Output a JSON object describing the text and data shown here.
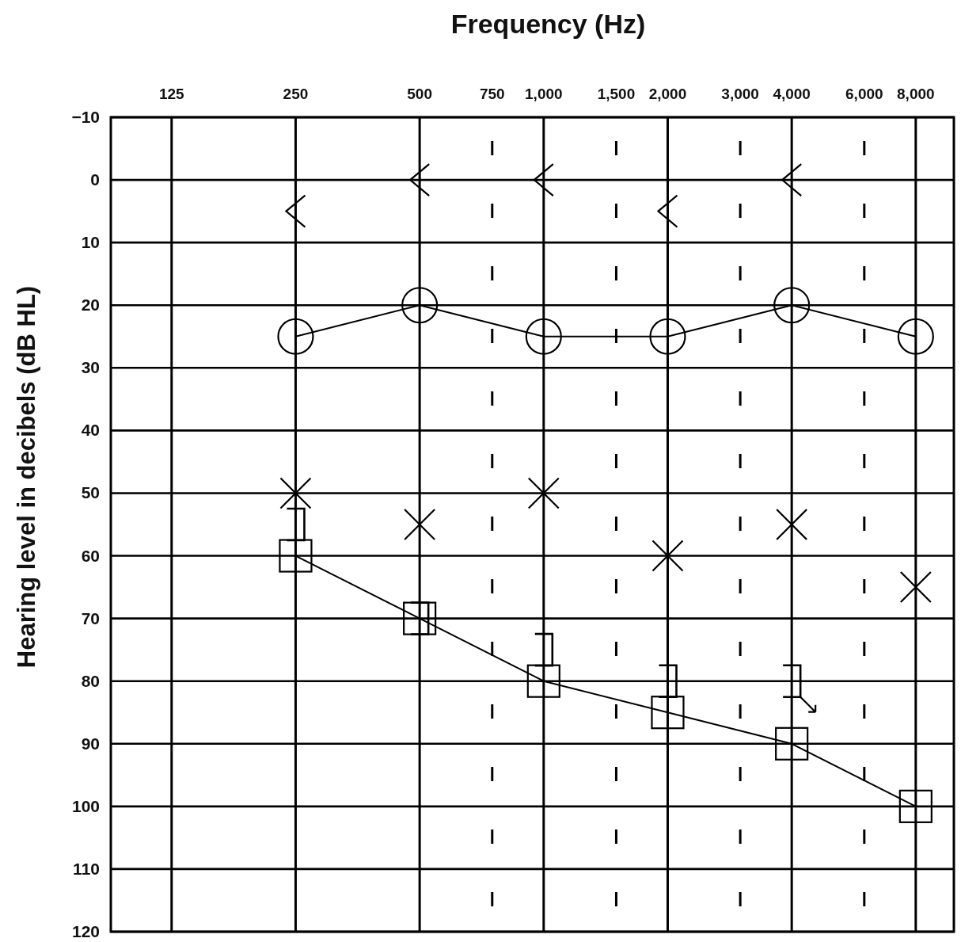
{
  "chart_data": {
    "type": "scatter",
    "xlabel": "Frequency (Hz)",
    "ylabel": "Hearing level in decibels (dB HL)",
    "log": "x",
    "xlim": [
      89,
      9900
    ],
    "ylim": [
      120,
      -10
    ],
    "xticks": [
      125,
      250,
      500,
      750,
      {
        "value": 1000,
        "label": "1,000"
      },
      {
        "value": 1500,
        "label": "1,500"
      },
      {
        "value": 2000,
        "label": "2,000"
      },
      {
        "value": 3000,
        "label": "3,000"
      },
      {
        "value": 4000,
        "label": "4,000"
      },
      {
        "value": 6000,
        "label": "6,000"
      },
      {
        "value": 8000,
        "label": "8,000"
      }
    ],
    "yticks": [
      {
        "value": -10,
        "label": "−10"
      },
      0,
      10,
      20,
      30,
      40,
      50,
      60,
      70,
      80,
      90,
      100,
      110,
      120
    ],
    "grid": true,
    "series": [
      {
        "type": "scatter",
        "color": "#000000",
        "x": [
          250,
          500,
          1000,
          2000,
          4000
        ],
        "values": [
          5,
          0,
          0,
          5,
          0
        ]
      },
      {
        "type": "line",
        "marker": "circle",
        "line_style": "solid",
        "color": "#000000",
        "x": [
          250,
          500,
          1000,
          2000,
          4000,
          8000
        ],
        "values": [
          25,
          20,
          25,
          25,
          20,
          25
        ]
      },
      {
        "type": "scatter",
        "marker": "cross",
        "color": "#000000",
        "x": [
          250,
          500,
          1000,
          2000,
          4000,
          8000
        ],
        "values": [
          50,
          55,
          50,
          60,
          55,
          65
        ]
      },
      {
        "type": "line",
        "marker": "square",
        "line_style": "solid",
        "color": "#000000",
        "x": [
          250,
          500,
          1000,
          2000,
          4000,
          8000
        ],
        "values": [
          60,
          70,
          80,
          85,
          90,
          100
        ]
      },
      {
        "type": "scatter",
        "color": "#000000",
        "x": [
          250,
          500,
          1000,
          2000,
          4000
        ],
        "values": [
          55,
          70,
          75,
          80,
          80
        ]
      }
    ]
  }
}
